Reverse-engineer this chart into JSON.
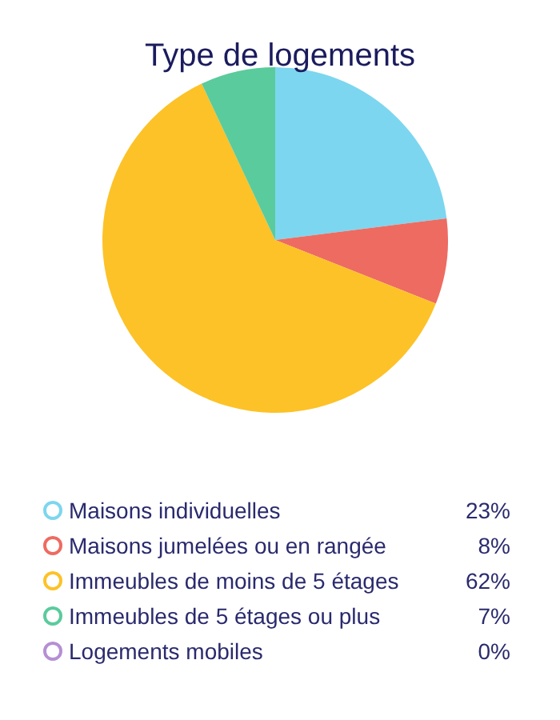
{
  "chart_data": {
    "type": "pie",
    "title": "Type de logements",
    "categories": [
      "Maisons individuelles",
      "Maisons jumelées ou en rangée",
      "Immeubles de moins de 5 étages",
      "Immeubles de 5 étages ou plus",
      "Logements mobiles"
    ],
    "values": [
      23,
      8,
      62,
      7,
      0
    ],
    "colors": [
      "#7dd6ef",
      "#ee6b61",
      "#fdc227",
      "#5acb9c",
      "#b58fd6"
    ],
    "value_labels": [
      "23%",
      "8%",
      "62%",
      "7%",
      "0%"
    ],
    "legend": "bottom"
  }
}
